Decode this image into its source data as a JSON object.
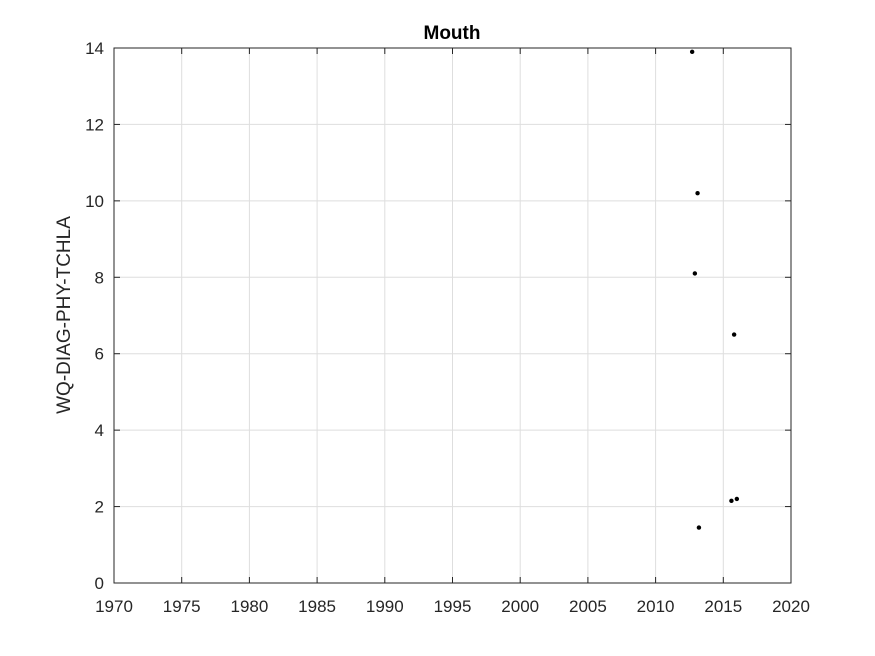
{
  "chart_data": {
    "type": "scatter",
    "title": "Mouth",
    "xlabel": "",
    "ylabel": "WQ-DIAG-PHY-TCHLA",
    "xlim": [
      1970,
      2020
    ],
    "ylim": [
      0,
      14
    ],
    "xticks": [
      1970,
      1975,
      1980,
      1985,
      1990,
      1995,
      2000,
      2005,
      2010,
      2015,
      2020
    ],
    "yticks": [
      0,
      2,
      4,
      6,
      8,
      10,
      12,
      14
    ],
    "grid": true,
    "marker_color": "#000000",
    "series": [
      {
        "points": [
          {
            "x": 2012.7,
            "y": 13.9
          },
          {
            "x": 2013.1,
            "y": 10.2
          },
          {
            "x": 2012.9,
            "y": 8.1
          },
          {
            "x": 2015.8,
            "y": 6.5
          },
          {
            "x": 2015.6,
            "y": 2.15
          },
          {
            "x": 2016.0,
            "y": 2.2
          },
          {
            "x": 2013.2,
            "y": 1.45
          }
        ]
      }
    ]
  }
}
